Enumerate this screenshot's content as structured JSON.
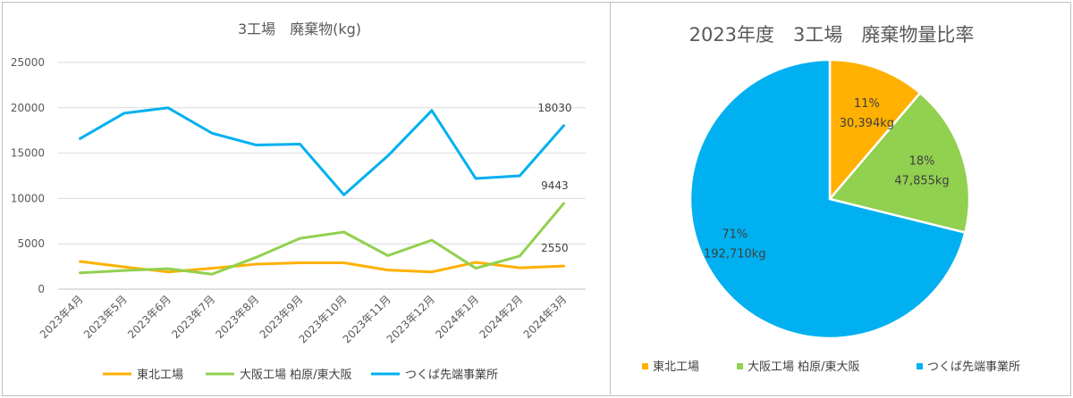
{
  "chart_data": [
    {
      "type": "line",
      "title": "3工場　廃棄物(kg)",
      "categories": [
        "2023年4月",
        "2023年5月",
        "2023年6月",
        "2023年7月",
        "2023年8月",
        "2023年9月",
        "2023年10月",
        "2023年11月",
        "2023年12月",
        "2024年1月",
        "2024年2月",
        "2024年3月"
      ],
      "ylim": [
        0,
        25000
      ],
      "yticks": [
        "0",
        "5000",
        "10000",
        "15000",
        "20000",
        "25000"
      ],
      "grid": true,
      "legend": "bottom",
      "series": [
        {
          "name": "東北工場",
          "color": "#ffb000",
          "values": [
            3050,
            2450,
            1900,
            2300,
            2750,
            2900,
            2900,
            2100,
            1900,
            2950,
            2350,
            2550
          ],
          "end_label": "2550"
        },
        {
          "name": "大阪工場 柏原/東大阪",
          "color": "#92d050",
          "values": [
            1800,
            2050,
            2250,
            1650,
            3500,
            5600,
            6300,
            3700,
            5400,
            2300,
            3650,
            9443
          ],
          "end_label": "9443"
        },
        {
          "name": "つくば先端事業所",
          "color": "#00b0f0",
          "values": [
            16600,
            19400,
            20000,
            17200,
            15900,
            16000,
            10400,
            14700,
            19700,
            12200,
            12500,
            18030
          ],
          "end_label": "18030"
        }
      ]
    },
    {
      "type": "pie",
      "title": "2023年度　3工場　廃棄物量比率",
      "legend": "bottom",
      "slices": [
        {
          "name": "東北工場",
          "value": 30394,
          "percent_label": "11%",
          "value_label": "30,394kg",
          "color": "#ffb000"
        },
        {
          "name": "大阪工場 柏原/東大阪",
          "value": 47855,
          "percent_label": "18%",
          "value_label": "47,855kg",
          "color": "#92d050"
        },
        {
          "name": "つくば先端事業所",
          "value": 192710,
          "percent_label": "71%",
          "value_label": "192,710kg",
          "color": "#00b0f0"
        }
      ]
    }
  ]
}
